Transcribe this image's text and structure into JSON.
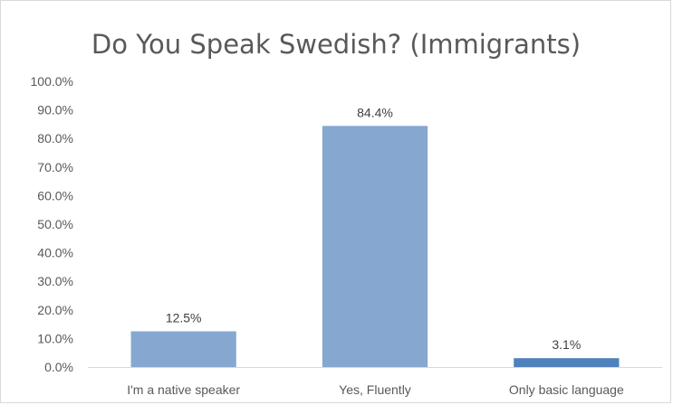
{
  "chart_data": {
    "type": "bar",
    "title": "Do You Speak Swedish? (Immigrants)",
    "categories": [
      "I'm a native speaker",
      "Yes, Fluently",
      "Only basic language"
    ],
    "values": [
      12.5,
      84.4,
      3.1
    ],
    "data_labels": [
      "12.5%",
      "84.4%",
      "3.1%"
    ],
    "ylim": [
      0,
      100
    ],
    "yticks": [
      0,
      10,
      20,
      30,
      40,
      50,
      60,
      70,
      80,
      90,
      100
    ],
    "ytick_labels": [
      "0.0%",
      "10.0%",
      "20.0%",
      "30.0%",
      "40.0%",
      "50.0%",
      "60.0%",
      "70.0%",
      "80.0%",
      "90.0%",
      "100.0%"
    ],
    "grid": false,
    "legend": "none",
    "colors": [
      "#86a7d0",
      "#86a7d0",
      "#4f81bd"
    ]
  }
}
